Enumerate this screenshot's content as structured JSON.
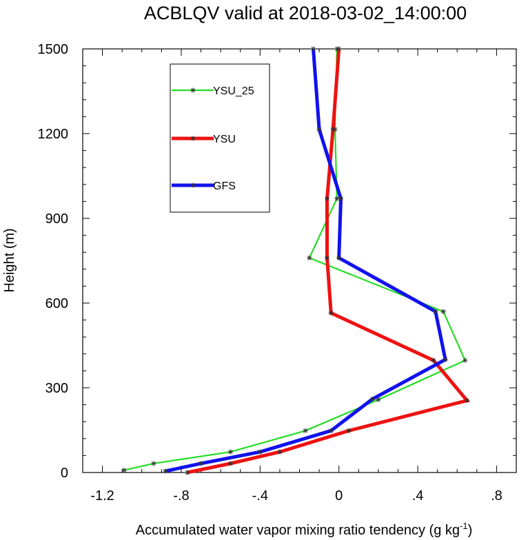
{
  "chart_data": {
    "type": "line",
    "title": "ACBLQV valid at 2018-03-02_14:00:00",
    "xlabel": "Accumulated water vapor mixing ratio tendency (g kg",
    "xlabel_sup": "-1",
    "xlabel_tail": ")",
    "ylabel": "Height (m)",
    "xlim": [
      -1.3,
      0.9
    ],
    "ylim": [
      0,
      1500
    ],
    "xticks": [
      -1.2,
      -0.8,
      -0.4,
      0,
      0.4,
      0.8
    ],
    "xtick_labels": [
      "-1.2",
      "-.8",
      "-.4",
      "0",
      ".4",
      ".8"
    ],
    "yticks": [
      0,
      300,
      600,
      900,
      1200,
      1500
    ],
    "ytick_labels": [
      "0",
      "300",
      "600",
      "900",
      "1200",
      "1500"
    ],
    "legend_position": "top-left",
    "series": [
      {
        "name": "YSU_25",
        "color": "#22dd22",
        "width": "thin",
        "points": [
          [
            -1.09,
            8
          ],
          [
            -0.94,
            32
          ],
          [
            -0.55,
            73
          ],
          [
            -0.17,
            148
          ],
          [
            0.2,
            258
          ],
          [
            0.64,
            397
          ],
          [
            0.53,
            570
          ],
          [
            -0.15,
            760
          ],
          [
            -0.01,
            970
          ],
          [
            -0.02,
            1215
          ],
          [
            -0.01,
            1500
          ]
        ]
      },
      {
        "name": "YSU",
        "color": "#ee1111",
        "width": "thick",
        "points": [
          [
            -0.77,
            0
          ],
          [
            -0.55,
            32
          ],
          [
            -0.3,
            73
          ],
          [
            0.05,
            148
          ],
          [
            0.65,
            255
          ],
          [
            0.48,
            397
          ],
          [
            -0.04,
            565
          ],
          [
            -0.06,
            760
          ],
          [
            -0.06,
            970
          ],
          [
            -0.03,
            1215
          ],
          [
            0.0,
            1500
          ]
        ]
      },
      {
        "name": "GFS",
        "color": "#1111ee",
        "width": "thick",
        "points": [
          [
            -0.88,
            5
          ],
          [
            -0.7,
            32
          ],
          [
            -0.4,
            73
          ],
          [
            -0.04,
            148
          ],
          [
            0.17,
            260
          ],
          [
            0.54,
            400
          ],
          [
            0.49,
            570
          ],
          [
            0.0,
            760
          ],
          [
            0.01,
            970
          ],
          [
            -0.1,
            1215
          ],
          [
            -0.13,
            1500
          ]
        ]
      }
    ]
  }
}
